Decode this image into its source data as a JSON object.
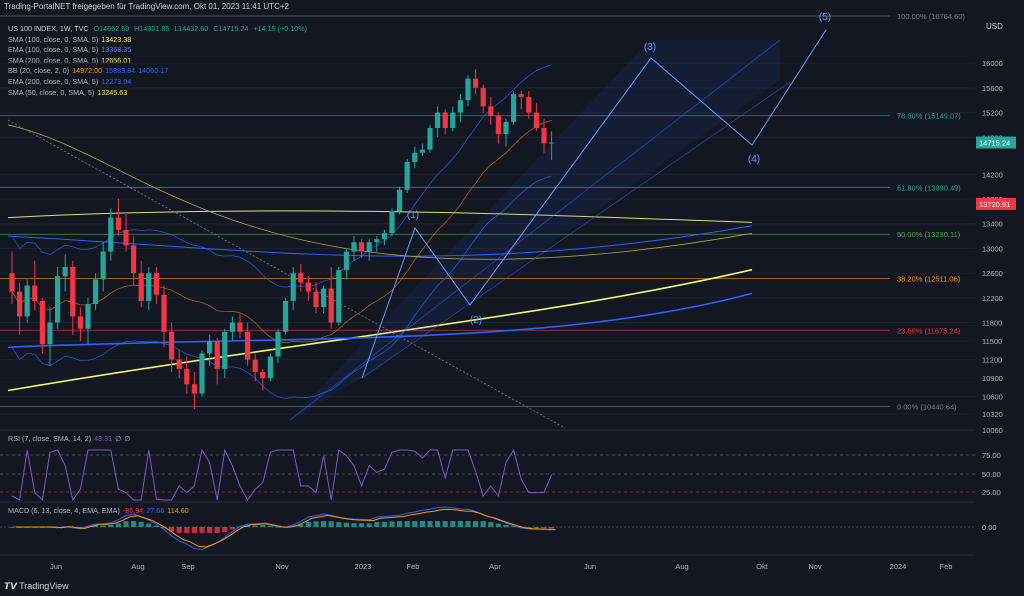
{
  "header": "Trading-PortalNET freigegeben für TradingView.com, Okt 01, 2023 11:41 UTC+2",
  "legend": {
    "main": {
      "name": "US 100 INDEX, 1W, TVC",
      "o": "O14662.69",
      "h": "H14901.85",
      "l": "L14432.60",
      "c": "C14715.24",
      "chg": "+14.15 (+0.10%)"
    },
    "rows": [
      {
        "label": "SMA (100, close, 0, SMA, 5)",
        "value": "13423.38",
        "color": "#f5e663"
      },
      {
        "label": "EMA (100, close, 0, SMA, 5)",
        "value": "13368.35",
        "color": "#2962ff"
      },
      {
        "label": "SMA (200, close, 0, SMA, 5)",
        "value": "12656.01",
        "color": "#e0e070"
      },
      {
        "label": "BB (20, close, 2, 0)",
        "value": "14972.00",
        "value2": "15883.84",
        "value3": "14060.17",
        "color": "#ff9800"
      },
      {
        "label": "EMA (200, close, 0, SMA, 5)",
        "value": "12273.04",
        "color": "#2962ff"
      },
      {
        "label": "SMA (50, close, 0, SMA, 5)",
        "value": "13245.63",
        "color": "#f5e663"
      }
    ]
  },
  "currency": "USD",
  "price_tags": [
    {
      "text": "14715.24",
      "color": "#26a69a",
      "y": 14715
    },
    {
      "text": "13720.91",
      "color": "#f23645",
      "y": 13721
    }
  ],
  "fib_labels": [
    {
      "text": "100.00% (16764.60)",
      "y": 16764
    },
    {
      "text": "78.60% (15149.07)",
      "y": 15149
    },
    {
      "text": "61.80% (13990.49)",
      "y": 13990
    },
    {
      "text": "50.00% (13230.11)",
      "y": 13230
    },
    {
      "text": "38.20% (12511.06)",
      "y": 12511
    },
    {
      "text": "23.60% (11675.24)",
      "y": 11675
    },
    {
      "text": "0.00% (10440.64)",
      "y": 10440
    }
  ],
  "wave_labels": [
    "(1)",
    "(2)",
    "(3)",
    "(4)",
    "(5)"
  ],
  "rsi": {
    "label": "RSI (7, close, SMA, 14, 2)",
    "value": "43.31",
    "v2": "∅",
    "v3": "∅",
    "ticks": [
      "75.00",
      "50.00",
      "25.00"
    ]
  },
  "macd": {
    "label": "MACD (6, 13, close, 4, EMA, EMA)",
    "v1": "-86.94",
    "v2": "27.66",
    "v3": "114.60",
    "tick": "0.00"
  },
  "footer": "TradingView",
  "chart_data": {
    "type": "candlestick",
    "title": "US 100 INDEX, 1W, TVC",
    "y_ticks": [
      16000,
      15600,
      15200,
      14800,
      14200,
      13800,
      13400,
      13000,
      12600,
      12200,
      11800,
      11500,
      11200,
      10900,
      10600,
      10320,
      10060
    ],
    "x_ticks": [
      "Jun",
      "Aug",
      "Sep",
      "Nov",
      "2023",
      "Feb",
      "Apr",
      "Jun",
      "Aug",
      "Okt",
      "Nov",
      "2024",
      "Feb"
    ],
    "ylim": [
      10060,
      16764
    ],
    "candles": [
      [
        12600,
        12950,
        12100,
        12300
      ],
      [
        12300,
        12450,
        11600,
        11900
      ],
      [
        11900,
        12500,
        11800,
        12400
      ],
      [
        12400,
        12800,
        12000,
        12150
      ],
      [
        12150,
        12200,
        11300,
        11450
      ],
      [
        11450,
        12050,
        11100,
        11800
      ],
      [
        11800,
        12700,
        11700,
        12550
      ],
      [
        12550,
        12900,
        12300,
        12700
      ],
      [
        12700,
        12800,
        11600,
        11900
      ],
      [
        11900,
        12050,
        11500,
        11700
      ],
      [
        11700,
        12200,
        11450,
        12100
      ],
      [
        12100,
        12600,
        12000,
        12500
      ],
      [
        12500,
        13100,
        12300,
        12950
      ],
      [
        12950,
        13650,
        12800,
        13500
      ],
      [
        13500,
        13800,
        13200,
        13300
      ],
      [
        13300,
        13550,
        12950,
        13050
      ],
      [
        13050,
        13200,
        12400,
        12600
      ],
      [
        12600,
        12800,
        12050,
        12150
      ],
      [
        12150,
        12700,
        12000,
        12600
      ],
      [
        12600,
        12700,
        12100,
        12250
      ],
      [
        12250,
        12400,
        11400,
        11650
      ],
      [
        11650,
        11800,
        11000,
        11200
      ],
      [
        11200,
        11350,
        10900,
        11050
      ],
      [
        11050,
        11250,
        10650,
        10800
      ],
      [
        10800,
        11000,
        10400,
        10650
      ],
      [
        10650,
        11350,
        10600,
        11300
      ],
      [
        11300,
        11600,
        11100,
        11500
      ],
      [
        11500,
        11550,
        10800,
        11050
      ],
      [
        11050,
        11700,
        10900,
        11650
      ],
      [
        11650,
        11900,
        11500,
        11800
      ],
      [
        11800,
        11950,
        11550,
        11650
      ],
      [
        11650,
        11800,
        11100,
        11200
      ],
      [
        11200,
        11300,
        10850,
        11000
      ],
      [
        11000,
        11050,
        10700,
        10900
      ],
      [
        10900,
        11300,
        10850,
        11250
      ],
      [
        11250,
        11700,
        11150,
        11650
      ],
      [
        11650,
        12200,
        11600,
        12150
      ],
      [
        12150,
        12700,
        12000,
        12600
      ],
      [
        12600,
        12750,
        12300,
        12450
      ],
      [
        12450,
        12550,
        12150,
        12300
      ],
      [
        12300,
        12450,
        11950,
        12050
      ],
      [
        12050,
        12400,
        11950,
        12350
      ],
      [
        12350,
        12700,
        11700,
        11800
      ],
      [
        11800,
        12700,
        11750,
        12650
      ],
      [
        12650,
        13000,
        12500,
        12950
      ],
      [
        12950,
        13200,
        12800,
        13100
      ],
      [
        13100,
        13150,
        12850,
        12950
      ],
      [
        12950,
        13150,
        12800,
        13100
      ],
      [
        13100,
        13200,
        12950,
        13150
      ],
      [
        13150,
        13300,
        13050,
        13250
      ],
      [
        13250,
        13650,
        13200,
        13600
      ],
      [
        13600,
        14000,
        13550,
        13950
      ],
      [
        13950,
        14450,
        13900,
        14400
      ],
      [
        14400,
        14650,
        14300,
        14550
      ],
      [
        14550,
        14700,
        14500,
        14600
      ],
      [
        14600,
        15000,
        14550,
        14950
      ],
      [
        14950,
        15300,
        14800,
        15200
      ],
      [
        15200,
        15250,
        14850,
        14950
      ],
      [
        14950,
        15300,
        14900,
        15200
      ],
      [
        15200,
        15500,
        15050,
        15400
      ],
      [
        15400,
        15800,
        15300,
        15750
      ],
      [
        15750,
        15900,
        15500,
        15600
      ],
      [
        15600,
        15650,
        15200,
        15300
      ],
      [
        15300,
        15450,
        15000,
        15150
      ],
      [
        15150,
        15200,
        14700,
        14850
      ],
      [
        14850,
        15100,
        14650,
        15050
      ],
      [
        15050,
        15550,
        15000,
        15500
      ],
      [
        15500,
        15550,
        15250,
        15450
      ],
      [
        15450,
        15550,
        15100,
        15200
      ],
      [
        15200,
        15350,
        14900,
        14950
      ],
      [
        14950,
        15100,
        14550,
        14700
      ],
      [
        14700,
        14900,
        14430,
        14715
      ]
    ]
  }
}
